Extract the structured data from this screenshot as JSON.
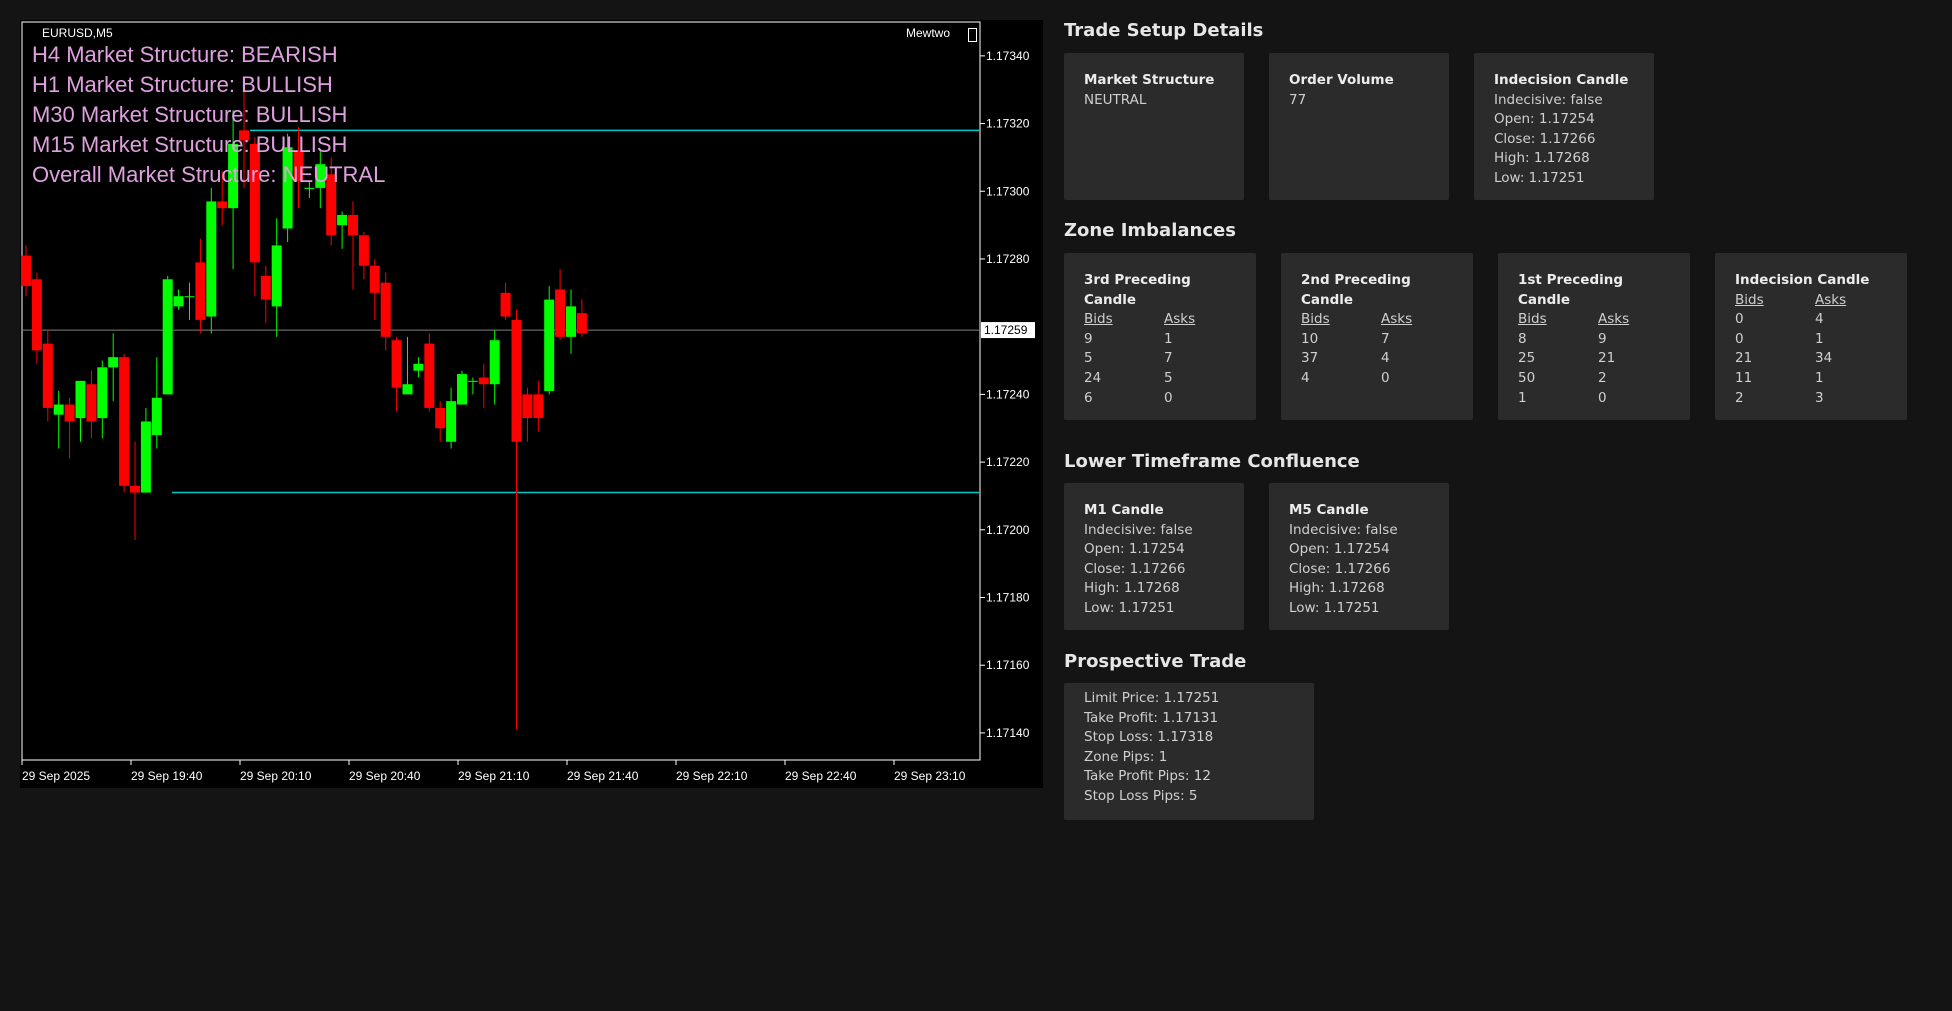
{
  "chart": {
    "symbol": "EURUSD,M5",
    "ea_name": "Mewtwo",
    "market_structure_lines": [
      "H4 Market Structure: BEARISH",
      "H1 Market Structure: BULLISH",
      "M30 Market Structure: BULLISH",
      "M15 Market Structure: BULLISH",
      "Overall Market Structure: NEUTRAL"
    ],
    "price_ticks": [
      "1.17340",
      "1.17320",
      "1.17300",
      "1.17280",
      "1.17240",
      "1.17220",
      "1.17200",
      "1.17180",
      "1.17160",
      "1.17140"
    ],
    "current_price": "1.17259",
    "time_ticks": [
      "29 Sep 2025",
      "29 Sep 19:40",
      "29 Sep 20:10",
      "29 Sep 20:40",
      "29 Sep 21:10",
      "29 Sep 21:40",
      "29 Sep 22:10",
      "29 Sep 22:40",
      "29 Sep 23:10"
    ],
    "horizontal_levels": [
      1.17318,
      1.17211
    ],
    "colors": {
      "bull": "#00ff00",
      "bear": "#ff0000",
      "level": "#00c8c8",
      "grid": "#808080",
      "text": "#ffffff"
    }
  },
  "chart_data": {
    "type": "candlestick",
    "symbol": "EURUSD",
    "timeframe": "M5",
    "ylim": [
      1.17132,
      1.1735
    ],
    "current_price": 1.17259,
    "candles": [
      {
        "o": 1.17281,
        "h": 1.17284,
        "l": 1.17269,
        "c": 1.17272
      },
      {
        "o": 1.17274,
        "h": 1.17276,
        "l": 1.17249,
        "c": 1.17253
      },
      {
        "o": 1.17255,
        "h": 1.17259,
        "l": 1.17232,
        "c": 1.17236
      },
      {
        "o": 1.17234,
        "h": 1.17241,
        "l": 1.17224,
        "c": 1.17237
      },
      {
        "o": 1.17237,
        "h": 1.17239,
        "l": 1.17221,
        "c": 1.17232
      },
      {
        "o": 1.17233,
        "h": 1.17244,
        "l": 1.17226,
        "c": 1.17244
      },
      {
        "o": 1.17243,
        "h": 1.17247,
        "l": 1.17227,
        "c": 1.17232
      },
      {
        "o": 1.17233,
        "h": 1.1725,
        "l": 1.17227,
        "c": 1.17248
      },
      {
        "o": 1.17248,
        "h": 1.17258,
        "l": 1.17238,
        "c": 1.17251
      },
      {
        "o": 1.17251,
        "h": 1.17252,
        "l": 1.17211,
        "c": 1.17213
      },
      {
        "o": 1.17213,
        "h": 1.17226,
        "l": 1.17197,
        "c": 1.17211
      },
      {
        "o": 1.17211,
        "h": 1.17236,
        "l": 1.17211,
        "c": 1.17232
      },
      {
        "o": 1.17228,
        "h": 1.17251,
        "l": 1.17224,
        "c": 1.17239
      },
      {
        "o": 1.1724,
        "h": 1.17275,
        "l": 1.1724,
        "c": 1.17274
      },
      {
        "o": 1.17266,
        "h": 1.17271,
        "l": 1.17265,
        "c": 1.17269
      },
      {
        "o": 1.17269,
        "h": 1.17273,
        "l": 1.17262,
        "c": 1.17269
      },
      {
        "o": 1.17279,
        "h": 1.17286,
        "l": 1.17258,
        "c": 1.17262
      },
      {
        "o": 1.17263,
        "h": 1.17301,
        "l": 1.17258,
        "c": 1.17297
      },
      {
        "o": 1.17297,
        "h": 1.17306,
        "l": 1.1729,
        "c": 1.17295
      },
      {
        "o": 1.17295,
        "h": 1.17324,
        "l": 1.17277,
        "c": 1.17314
      },
      {
        "o": 1.17318,
        "h": 1.1733,
        "l": 1.17301,
        "c": 1.17315
      },
      {
        "o": 1.17314,
        "h": 1.17316,
        "l": 1.17269,
        "c": 1.17279
      },
      {
        "o": 1.17275,
        "h": 1.17278,
        "l": 1.17261,
        "c": 1.17268
      },
      {
        "o": 1.17266,
        "h": 1.17292,
        "l": 1.17257,
        "c": 1.17284
      },
      {
        "o": 1.17289,
        "h": 1.17317,
        "l": 1.17285,
        "c": 1.17313
      },
      {
        "o": 1.17312,
        "h": 1.17319,
        "l": 1.17295,
        "c": 1.17303
      },
      {
        "o": 1.17301,
        "h": 1.17303,
        "l": 1.17298,
        "c": 1.17301
      },
      {
        "o": 1.17301,
        "h": 1.17312,
        "l": 1.17295,
        "c": 1.17308
      },
      {
        "o": 1.17305,
        "h": 1.1731,
        "l": 1.17284,
        "c": 1.17287
      },
      {
        "o": 1.1729,
        "h": 1.17294,
        "l": 1.17283,
        "c": 1.17293
      },
      {
        "o": 1.17293,
        "h": 1.17297,
        "l": 1.17271,
        "c": 1.17287
      },
      {
        "o": 1.17287,
        "h": 1.17288,
        "l": 1.17274,
        "c": 1.17278
      },
      {
        "o": 1.17278,
        "h": 1.1728,
        "l": 1.17262,
        "c": 1.1727
      },
      {
        "o": 1.17273,
        "h": 1.17276,
        "l": 1.17253,
        "c": 1.17257
      },
      {
        "o": 1.17256,
        "h": 1.17257,
        "l": 1.17235,
        "c": 1.17242
      },
      {
        "o": 1.1724,
        "h": 1.17257,
        "l": 1.1724,
        "c": 1.17243
      },
      {
        "o": 1.17247,
        "h": 1.17251,
        "l": 1.17245,
        "c": 1.17249
      },
      {
        "o": 1.17255,
        "h": 1.17258,
        "l": 1.17235,
        "c": 1.17236
      },
      {
        "o": 1.17236,
        "h": 1.17238,
        "l": 1.17226,
        "c": 1.1723
      },
      {
        "o": 1.17226,
        "h": 1.17242,
        "l": 1.17224,
        "c": 1.17238
      },
      {
        "o": 1.17237,
        "h": 1.17247,
        "l": 1.17237,
        "c": 1.17246
      },
      {
        "o": 1.17244,
        "h": 1.17245,
        "l": 1.1724,
        "c": 1.17244
      },
      {
        "o": 1.17245,
        "h": 1.17249,
        "l": 1.17236,
        "c": 1.17243
      },
      {
        "o": 1.17243,
        "h": 1.17259,
        "l": 1.17237,
        "c": 1.17256
      },
      {
        "o": 1.1727,
        "h": 1.17273,
        "l": 1.17262,
        "c": 1.17263
      },
      {
        "o": 1.17262,
        "h": 1.17265,
        "l": 1.17141,
        "c": 1.17226
      },
      {
        "o": 1.1724,
        "h": 1.17242,
        "l": 1.17226,
        "c": 1.17233
      },
      {
        "o": 1.1724,
        "h": 1.17244,
        "l": 1.17229,
        "c": 1.17233
      },
      {
        "o": 1.17241,
        "h": 1.17272,
        "l": 1.1724,
        "c": 1.17268
      },
      {
        "o": 1.17271,
        "h": 1.17277,
        "l": 1.17256,
        "c": 1.17257
      },
      {
        "o": 1.17257,
        "h": 1.17271,
        "l": 1.17252,
        "c": 1.17266
      },
      {
        "o": 1.17264,
        "h": 1.17268,
        "l": 1.17257,
        "c": 1.17258
      }
    ]
  },
  "trade_setup": {
    "title": "Trade Setup Details",
    "market_structure": {
      "title": "Market Structure",
      "value": "NEUTRAL"
    },
    "order_volume": {
      "title": "Order Volume",
      "value": "77"
    },
    "indecision_candle": {
      "title": "Indecision Candle",
      "lines": [
        "Indecisive: false",
        "Open: 1.17254",
        "Close: 1.17266",
        "High: 1.17268",
        "Low: 1.17251"
      ]
    }
  },
  "zone_imbalances": {
    "title": "Zone Imbalances",
    "cards": [
      {
        "title": "3rd Preceding Candle",
        "bids_label": "Bids",
        "asks_label": "Asks",
        "rows": [
          [
            "9",
            "1"
          ],
          [
            "5",
            "7"
          ],
          [
            "24",
            "5"
          ],
          [
            "6",
            "0"
          ]
        ]
      },
      {
        "title": "2nd Preceding Candle",
        "bids_label": "Bids",
        "asks_label": "Asks",
        "rows": [
          [
            "10",
            "7"
          ],
          [
            "37",
            "4"
          ],
          [
            "4",
            "0"
          ]
        ]
      },
      {
        "title": "1st Preceding Candle",
        "bids_label": "Bids",
        "asks_label": "Asks",
        "rows": [
          [
            "8",
            "9"
          ],
          [
            "25",
            "21"
          ],
          [
            "50",
            "2"
          ],
          [
            "1",
            "0"
          ]
        ]
      },
      {
        "title": "Indecision Candle",
        "bids_label": "Bids",
        "asks_label": "Asks",
        "rows": [
          [
            "0",
            "4"
          ],
          [
            "0",
            "1"
          ],
          [
            "21",
            "34"
          ],
          [
            "11",
            "1"
          ],
          [
            "2",
            "3"
          ]
        ]
      }
    ]
  },
  "lower_tf": {
    "title": "Lower Timeframe Confluence",
    "cards": [
      {
        "title": "M1 Candle",
        "lines": [
          "Indecisive: false",
          "Open: 1.17254",
          "Close: 1.17266",
          "High: 1.17268",
          "Low: 1.17251"
        ]
      },
      {
        "title": "M5 Candle",
        "lines": [
          "Indecisive: false",
          "Open: 1.17254",
          "Close: 1.17266",
          "High: 1.17268",
          "Low: 1.17251"
        ]
      }
    ]
  },
  "prospective_trade": {
    "title": "Prospective Trade",
    "lines": [
      "Limit Price: 1.17251",
      "Take Profit: 1.17131",
      "Stop Loss: 1.17318",
      "Zone Pips: 1",
      "Take Profit Pips: 12",
      "Stop Loss Pips: 5"
    ]
  }
}
